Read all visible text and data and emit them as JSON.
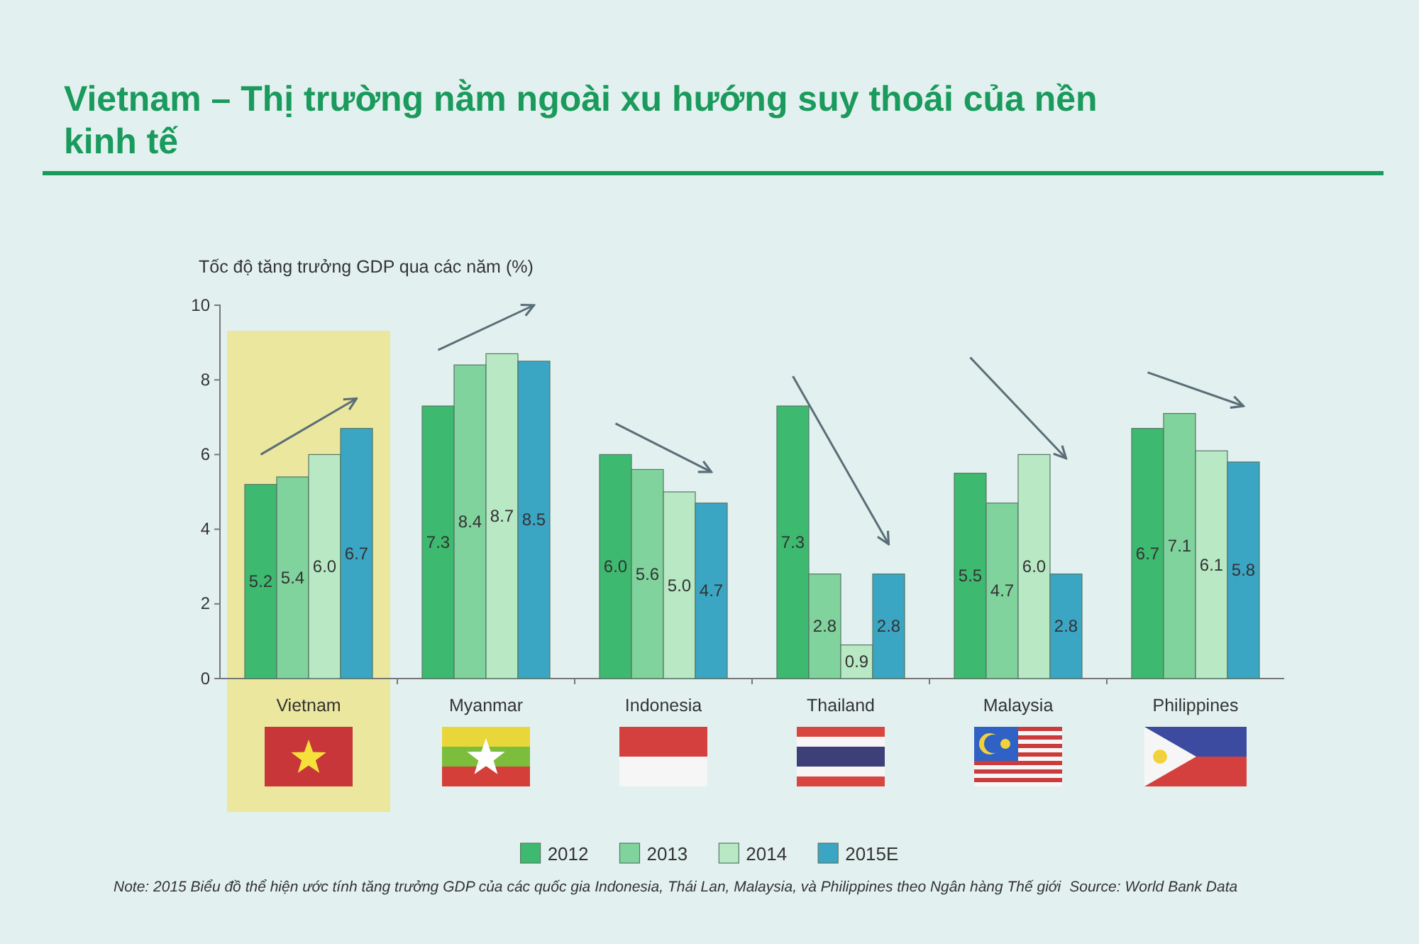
{
  "chart_data": {
    "type": "bar",
    "title": "Vietnam – Thị trường nằm ngoài xu hướng suy thoái của nền kinh tế",
    "ylabel": "Tốc độ tăng trưởng GDP qua các năm (%)",
    "categories": [
      "Vietnam",
      "Myanmar",
      "Indonesia",
      "Thailand",
      "Malaysia",
      "Philippines"
    ],
    "series": [
      {
        "name": "2012",
        "color": "#3dba6f",
        "values": [
          5.2,
          7.3,
          6.0,
          7.3,
          5.5,
          6.7
        ],
        "value_labels": [
          "5.2",
          "7.3",
          "6.0",
          "7.3",
          "5.5",
          "6.7"
        ]
      },
      {
        "name": "2013",
        "color": "#80d39c",
        "values": [
          5.4,
          8.4,
          5.6,
          2.8,
          4.7,
          7.1
        ],
        "value_labels": [
          "5.4",
          "8.4",
          "5.6",
          "2.8",
          "4.7",
          "7.1"
        ]
      },
      {
        "name": "2014",
        "color": "#b8e8c4",
        "values": [
          6.0,
          8.7,
          5.0,
          0.9,
          6.0,
          6.1
        ],
        "value_labels": [
          "6.0",
          "8.7",
          "5.0",
          "0.9",
          "6.0",
          "6.1"
        ]
      },
      {
        "name": "2015E",
        "color": "#3ba5c4",
        "values": [
          6.7,
          8.5,
          4.7,
          2.8,
          2.8,
          5.8
        ],
        "value_labels": [
          "6.7",
          "8.5",
          "4.7",
          "2.8",
          "2.8",
          "5.8"
        ]
      }
    ],
    "ylim": [
      0,
      10
    ],
    "yticks": [
      0,
      2,
      4,
      6,
      8,
      10
    ],
    "legend": "bottom",
    "bands": [
      {
        "axis": "x",
        "from": "Vietnam",
        "to": "Vietnam",
        "color": "#ebe79e"
      }
    ],
    "annotations": [
      "Note: 2015 Biểu đồ thể hiện ước tính tăng trưởng GDP của các quốc gia Indonesia, Thái Lan, Malaysia, và Philippines theo Ngân hàng Thế giới",
      "Source: World Bank Data"
    ]
  }
}
